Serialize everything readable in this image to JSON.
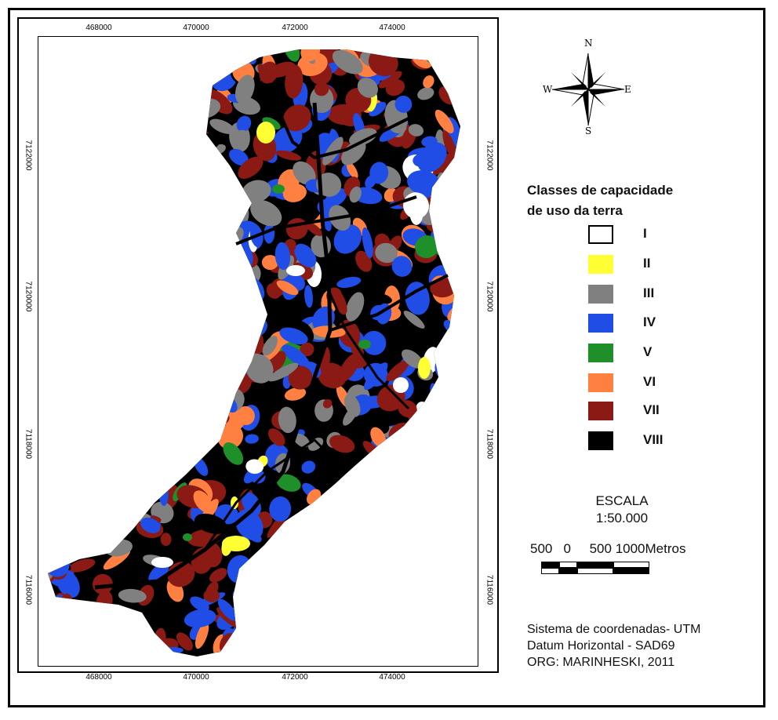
{
  "map": {
    "x_ticks_top": [
      "468000",
      "470000",
      "472000",
      "474000"
    ],
    "x_ticks_bottom": [
      "468000",
      "470000",
      "472000",
      "474000"
    ],
    "y_ticks_left": [
      "7122000",
      "7120000",
      "7118000",
      "7116000"
    ],
    "y_ticks_right": [
      "7122000",
      "7120000",
      "7118000",
      "7116000"
    ]
  },
  "compass": {
    "n": "N",
    "s": "S",
    "e": "E",
    "w": "W"
  },
  "legend": {
    "title_line1": "Classes de capacidade",
    "title_line2": "de uso da terra",
    "items": [
      {
        "label": "I",
        "color": "#ffffff"
      },
      {
        "label": "II",
        "color": "#ffff33"
      },
      {
        "label": "III",
        "color": "#808080"
      },
      {
        "label": "IV",
        "color": "#1f4de6"
      },
      {
        "label": "V",
        "color": "#1f8f2a"
      },
      {
        "label": "VI",
        "color": "#ff8040"
      },
      {
        "label": "VII",
        "color": "#8b1a14"
      },
      {
        "label": "VIII",
        "color": "#000000"
      }
    ]
  },
  "scale": {
    "title": "ESCALA",
    "ratio": "1:50.000",
    "labels": "500   0     500 1000Metros"
  },
  "footer": {
    "line1": "Sistema de coordenadas- UTM",
    "line2": "Datum Horizontal - SAD69",
    "line3": "ORG: MARINHESKI, 2011"
  }
}
